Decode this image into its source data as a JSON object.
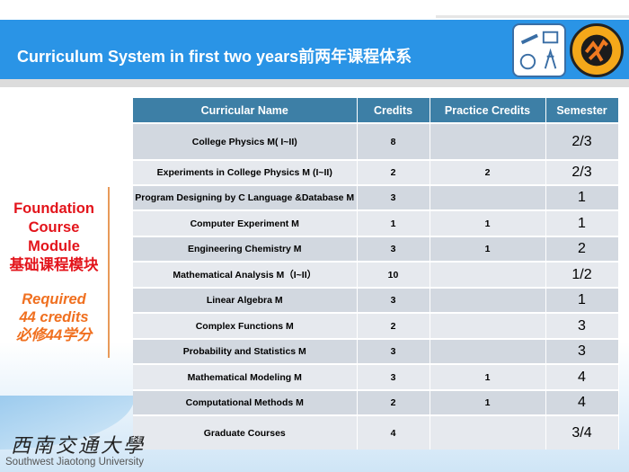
{
  "header": {
    "title": "Curriculum System in first two years前两年课程体系"
  },
  "logos": {
    "left": "Southwest Jiaotong University emblem",
    "right": "Mao Yisheng Honors College emblem"
  },
  "side": {
    "line1": "Foundation",
    "line2": "Course",
    "line3": "Module",
    "line4": "基础课程模块",
    "req1": "Required",
    "req2": "44 credits",
    "req3": "必修44学分"
  },
  "table": {
    "columns": [
      "Curricular Name",
      "Credits",
      "Practice Credits",
      "Semester"
    ],
    "rows": [
      {
        "name": "College Physics M( I~II)",
        "credits": "8",
        "practice": "",
        "semester": "2/3"
      },
      {
        "name": "Experiments in College Physics M (I~II)",
        "credits": "2",
        "practice": "2",
        "semester": "2/3"
      },
      {
        "name": "Program Designing by C Language &Database M",
        "credits": "3",
        "practice": "",
        "semester": "1"
      },
      {
        "name": "Computer Experiment M",
        "credits": "1",
        "practice": "1",
        "semester": "1"
      },
      {
        "name": "Engineering Chemistry M",
        "credits": "3",
        "practice": "1",
        "semester": "2"
      },
      {
        "name": "Mathematical Analysis M（I~II）",
        "credits": "10",
        "practice": "",
        "semester": "1/2"
      },
      {
        "name": "Linear Algebra M",
        "credits": "3",
        "practice": "",
        "semester": "1"
      },
      {
        "name": "Complex Functions M",
        "credits": "2",
        "practice": "",
        "semester": "3"
      },
      {
        "name": "Probability and Statistics M",
        "credits": "3",
        "practice": "",
        "semester": "3"
      },
      {
        "name": "Mathematical Modeling M",
        "credits": "3",
        "practice": "1",
        "semester": "4"
      },
      {
        "name": "Computational Methods M",
        "credits": "2",
        "practice": "1",
        "semester": "4"
      },
      {
        "name": "Graduate Courses",
        "credits": "4",
        "practice": "",
        "semester": "3/4"
      }
    ]
  },
  "footer": {
    "university_cn": "西南交通大學",
    "university_en": "Southwest Jiaotong University"
  }
}
